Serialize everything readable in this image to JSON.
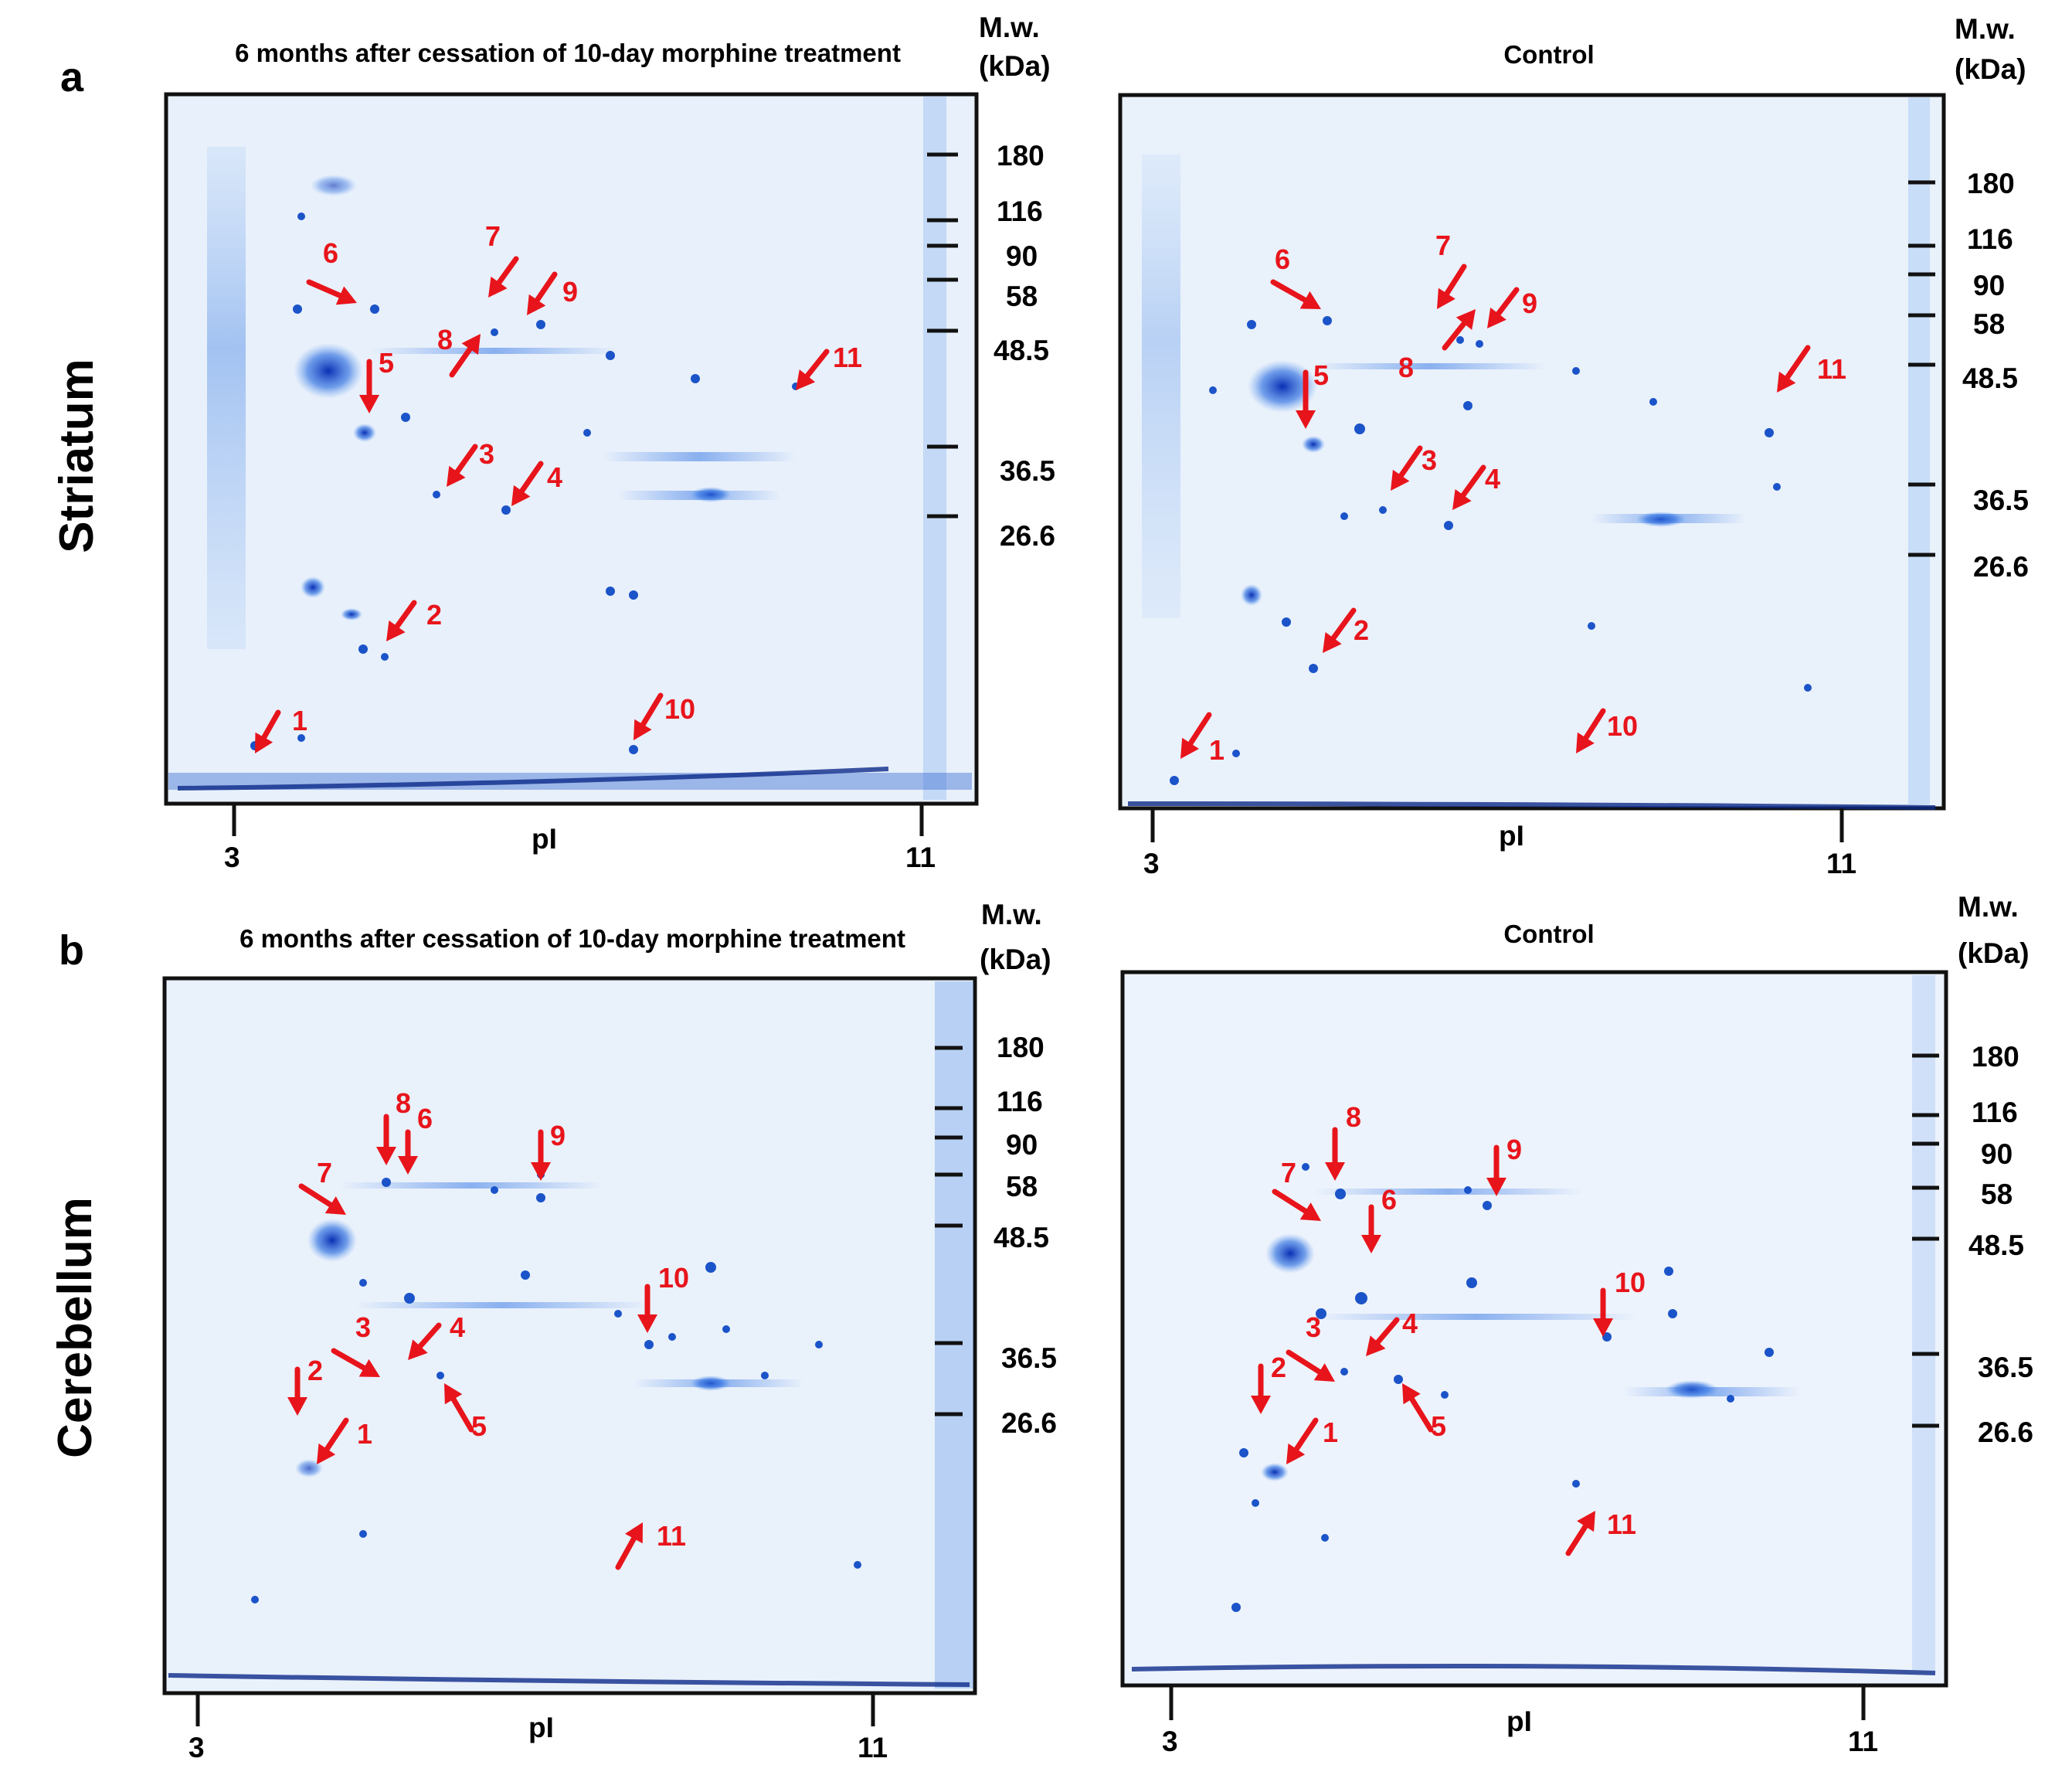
{
  "figure": {
    "panels": [
      {
        "letter": "a",
        "tissue": "Striatum",
        "gels": [
          {
            "title": "6 months after cessation of 10-day morphine treatment",
            "mw_header": [
              "M.w.",
              "(kDa)"
            ],
            "mw_markers": [
              "180",
              "116",
              "90",
              "58",
              "48.5",
              "36.5",
              "26.6"
            ],
            "ph_start": "3",
            "ph_end": "11",
            "axis_label": "pI",
            "spot_labels": [
              "1",
              "2",
              "3",
              "4",
              "5",
              "6",
              "7",
              "8",
              "9",
              "10",
              "11"
            ]
          },
          {
            "title": "Control",
            "mw_header": [
              "M.w.",
              "(kDa)"
            ],
            "mw_markers": [
              "180",
              "116",
              "90",
              "58",
              "48.5",
              "36.5",
              "26.6"
            ],
            "ph_start": "3",
            "ph_end": "11",
            "axis_label": "pI",
            "spot_labels": [
              "1",
              "2",
              "3",
              "4",
              "5",
              "6",
              "7",
              "8",
              "9",
              "10",
              "11"
            ]
          }
        ]
      },
      {
        "letter": "b",
        "tissue": "Cerebellum",
        "gels": [
          {
            "title": "6 months after cessation of 10-day morphine treatment",
            "mw_header": [
              "M.w.",
              "(kDa)"
            ],
            "mw_markers": [
              "180",
              "116",
              "90",
              "58",
              "48.5",
              "36.5",
              "26.6"
            ],
            "ph_start": "3",
            "ph_end": "11",
            "axis_label": "pI",
            "spot_labels": [
              "1",
              "2",
              "3",
              "4",
              "5",
              "6",
              "7",
              "8",
              "9",
              "10",
              "11"
            ]
          },
          {
            "title": "Control",
            "mw_header": [
              "M.w.",
              "(kDa)"
            ],
            "mw_markers": [
              "180",
              "116",
              "90",
              "58",
              "48.5",
              "36.5",
              "26.6"
            ],
            "ph_start": "3",
            "ph_end": "11",
            "axis_label": "pI",
            "spot_labels": [
              "1",
              "2",
              "3",
              "4",
              "5",
              "6",
              "7",
              "8",
              "9",
              "10",
              "11"
            ]
          }
        ]
      }
    ],
    "colors": {
      "arrow": "#e8141b",
      "gel_bg": "#e9f1fb",
      "spot": "#1f5fd6",
      "frame": "#111111"
    }
  }
}
